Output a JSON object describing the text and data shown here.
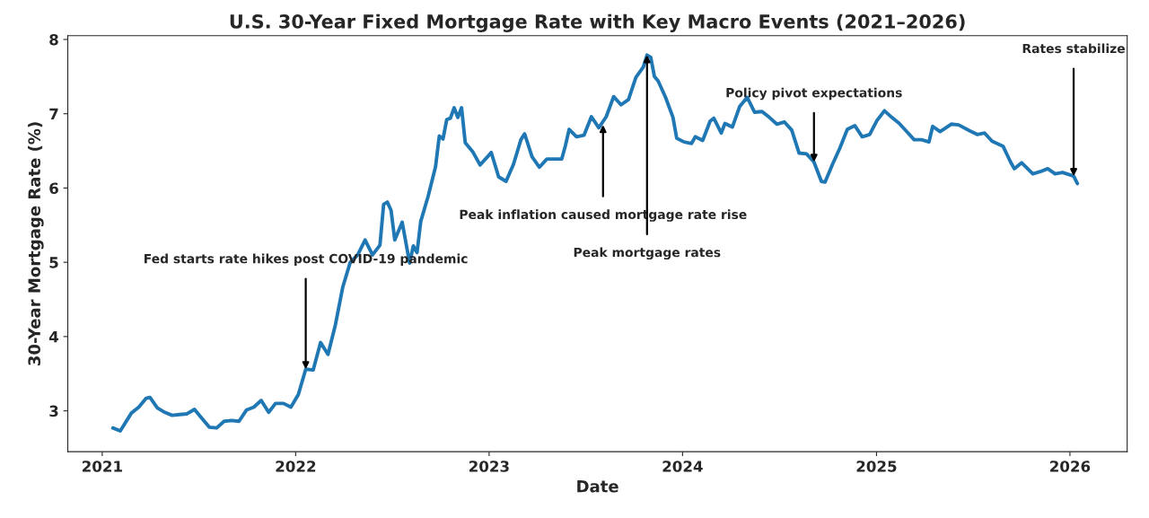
{
  "chart_data": {
    "type": "line",
    "title": "U.S. 30-Year Fixed Mortgage Rate with Key Macro Events (2021–2026)",
    "xlabel": "Date",
    "ylabel": "30-Year Mortgage Rate (%)",
    "x": [
      "2021-01-21",
      "2021-02-04",
      "2021-02-25",
      "2021-03-11",
      "2021-03-25",
      "2021-04-01",
      "2021-04-15",
      "2021-04-29",
      "2021-05-13",
      "2021-05-27",
      "2021-06-10",
      "2021-06-24",
      "2021-07-08",
      "2021-07-22",
      "2021-08-05",
      "2021-08-19",
      "2021-09-02",
      "2021-09-16",
      "2021-09-30",
      "2021-10-14",
      "2021-10-28",
      "2021-11-11",
      "2021-11-24",
      "2021-12-09",
      "2021-12-23",
      "2022-01-06",
      "2022-01-20",
      "2022-02-03",
      "2022-02-17",
      "2022-03-03",
      "2022-03-17",
      "2022-03-31",
      "2022-04-14",
      "2022-04-28",
      "2022-05-12",
      "2022-05-26",
      "2022-06-09",
      "2022-06-16",
      "2022-06-23",
      "2022-06-30",
      "2022-07-07",
      "2022-07-21",
      "2022-08-04",
      "2022-08-11",
      "2022-08-18",
      "2022-08-25",
      "2022-09-08",
      "2022-09-22",
      "2022-09-29",
      "2022-10-06",
      "2022-10-13",
      "2022-10-20",
      "2022-10-27",
      "2022-11-03",
      "2022-11-10",
      "2022-11-17",
      "2022-12-01",
      "2022-12-15",
      "2022-12-29",
      "2023-01-05",
      "2023-01-19",
      "2023-02-02",
      "2023-02-16",
      "2023-03-02",
      "2023-03-09",
      "2023-03-23",
      "2023-04-06",
      "2023-04-20",
      "2023-05-04",
      "2023-05-18",
      "2023-05-25",
      "2023-06-01",
      "2023-06-15",
      "2023-06-29",
      "2023-07-13",
      "2023-07-27",
      "2023-08-10",
      "2023-08-24",
      "2023-09-07",
      "2023-09-21",
      "2023-10-05",
      "2023-10-19",
      "2023-10-26",
      "2023-11-02",
      "2023-11-09",
      "2023-11-16",
      "2023-11-30",
      "2023-12-14",
      "2023-12-21",
      "2024-01-04",
      "2024-01-18",
      "2024-01-25",
      "2024-02-08",
      "2024-02-22",
      "2024-02-29",
      "2024-03-14",
      "2024-03-21",
      "2024-04-04",
      "2024-04-18",
      "2024-05-02",
      "2024-05-16",
      "2024-05-30",
      "2024-06-13",
      "2024-06-27",
      "2024-07-11",
      "2024-07-25",
      "2024-08-08",
      "2024-08-22",
      "2024-09-05",
      "2024-09-19",
      "2024-09-26",
      "2024-10-10",
      "2024-10-24",
      "2024-11-07",
      "2024-11-21",
      "2024-12-05",
      "2024-12-19",
      "2025-01-02",
      "2025-01-16",
      "2025-01-30",
      "2025-02-13",
      "2025-02-27",
      "2025-03-13",
      "2025-03-27",
      "2025-04-10",
      "2025-04-17",
      "2025-05-01",
      "2025-05-22",
      "2025-06-05",
      "2025-06-26",
      "2025-07-10",
      "2025-07-24",
      "2025-08-07",
      "2025-08-28",
      "2025-09-11",
      "2025-09-18",
      "2025-10-02",
      "2025-10-23",
      "2025-11-06",
      "2025-11-20",
      "2025-12-04",
      "2025-12-18",
      "2026-01-08",
      "2026-01-15"
    ],
    "series": [
      {
        "color": "#1f77b4",
        "values": [
          2.77,
          2.73,
          2.97,
          3.05,
          3.17,
          3.18,
          3.04,
          2.98,
          2.94,
          2.95,
          2.96,
          3.02,
          2.9,
          2.78,
          2.77,
          2.86,
          2.87,
          2.86,
          3.01,
          3.05,
          3.14,
          2.98,
          3.1,
          3.1,
          3.05,
          3.22,
          3.56,
          3.55,
          3.92,
          3.76,
          4.16,
          4.67,
          5.0,
          5.1,
          5.3,
          5.1,
          5.23,
          5.78,
          5.81,
          5.7,
          5.3,
          5.54,
          4.99,
          5.22,
          5.13,
          5.55,
          5.89,
          6.29,
          6.7,
          6.66,
          6.92,
          6.94,
          7.08,
          6.95,
          7.08,
          6.61,
          6.49,
          6.31,
          6.42,
          6.48,
          6.15,
          6.09,
          6.32,
          6.65,
          6.73,
          6.42,
          6.28,
          6.39,
          6.39,
          6.39,
          6.57,
          6.79,
          6.69,
          6.71,
          6.96,
          6.81,
          6.96,
          7.23,
          7.12,
          7.19,
          7.49,
          7.63,
          7.79,
          7.76,
          7.5,
          7.44,
          7.22,
          6.95,
          6.67,
          6.62,
          6.6,
          6.69,
          6.64,
          6.9,
          6.94,
          6.74,
          6.87,
          6.82,
          7.1,
          7.22,
          7.02,
          7.03,
          6.95,
          6.86,
          6.89,
          6.78,
          6.47,
          6.46,
          6.35,
          6.09,
          6.08,
          6.32,
          6.54,
          6.79,
          6.84,
          6.69,
          6.72,
          6.91,
          7.04,
          6.95,
          6.87,
          6.76,
          6.65,
          6.65,
          6.62,
          6.83,
          6.76,
          6.86,
          6.85,
          6.77,
          6.72,
          6.74,
          6.63,
          6.56,
          6.35,
          6.26,
          6.34,
          6.19,
          6.22,
          6.26,
          6.19,
          6.21,
          6.16,
          6.06
        ]
      }
    ],
    "annotations": [
      {
        "text": "Fed starts rate hikes post COVID-19 pandemic",
        "x": "2022-01-20",
        "y": 3.56
      },
      {
        "text": "Peak inflation caused mortgage rate rise",
        "x": "2023-08-04",
        "y": 6.85
      },
      {
        "text": "Peak mortgage rates",
        "x": "2023-10-26",
        "y": 7.79
      },
      {
        "text": "Policy pivot expectations",
        "x": "2024-09-05",
        "y": 6.35
      },
      {
        "text": "Rates stabilize",
        "x": "2026-01-08",
        "y": 6.16
      }
    ],
    "xlim": [
      "2020-10-28",
      "2026-04-19"
    ],
    "xticks": [
      {
        "value": "2021-01-01",
        "label": "2021"
      },
      {
        "value": "2022-01-01",
        "label": "2022"
      },
      {
        "value": "2023-01-01",
        "label": "2023"
      },
      {
        "value": "2024-01-01",
        "label": "2024"
      },
      {
        "value": "2025-01-01",
        "label": "2025"
      },
      {
        "value": "2026-01-01",
        "label": "2026"
      }
    ],
    "ylim": [
      2.45,
      8.05
    ],
    "yticks": [
      3,
      4,
      5,
      6,
      7,
      8
    ],
    "grid": false,
    "line_style": "solid",
    "marker": "none"
  }
}
